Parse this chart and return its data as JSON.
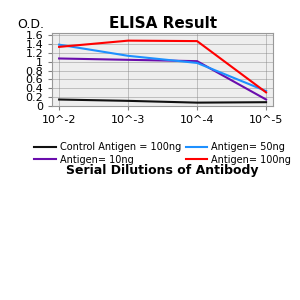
{
  "title": "ELISA Result",
  "xlabel": "Serial Dilutions of Antibody",
  "ylabel": "O.D.",
  "ylim": [
    0,
    1.65
  ],
  "yticks": [
    0,
    0.2,
    0.4,
    0.6,
    0.8,
    1.0,
    1.2,
    1.4,
    1.6
  ],
  "x_positions": [
    0,
    1,
    2,
    3
  ],
  "x_ticklabels": [
    "10^-2",
    "10^-3",
    "10^-4",
    "10^-5"
  ],
  "black_line": [
    0.15,
    0.12,
    0.08,
    0.09
  ],
  "purple_line": [
    1.07,
    1.04,
    1.01,
    0.15
  ],
  "blue_line": [
    1.38,
    1.13,
    0.97,
    0.34
  ],
  "red_line": [
    1.33,
    1.47,
    1.46,
    0.31
  ],
  "black_color": "#111111",
  "purple_color": "#6A0DAD",
  "blue_color": "#1E90FF",
  "red_color": "#FF0000",
  "legend_labels": [
    "Control Antigen = 100ng",
    "Antigen= 10ng",
    "Antigen= 50ng",
    "Antigen= 100ng"
  ],
  "bg_color": "#eeeeee",
  "title_fontsize": 11,
  "tick_fontsize": 8,
  "legend_fontsize": 7,
  "xlabel_fontsize": 9
}
